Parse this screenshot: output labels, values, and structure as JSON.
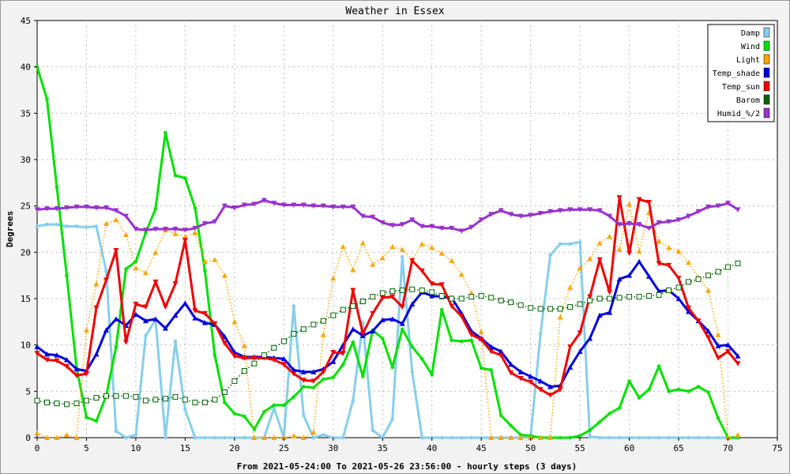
{
  "chart_data": {
    "type": "line",
    "title": "Weather in Essex",
    "xlabel": "From 2021-05-24:00 To 2021-05-26 23:56:00 - hourly steps (3 days)",
    "ylabel": "Degrees",
    "xlim": [
      0,
      75
    ],
    "ylim": [
      0,
      45
    ],
    "xticks": [
      0,
      5,
      10,
      15,
      20,
      25,
      30,
      35,
      40,
      45,
      50,
      55,
      60,
      65,
      70,
      75
    ],
    "yticks": [
      0,
      5,
      10,
      15,
      20,
      25,
      30,
      35,
      40,
      45
    ],
    "grid": true,
    "legend_position": "top-right",
    "series": [
      {
        "name": "Damp",
        "color": "#87ceeb",
        "marker": "circle",
        "line": "solid",
        "values": [
          22.8,
          23,
          23,
          22.8,
          22.8,
          22.7,
          22.8,
          18,
          0.7,
          0,
          0.3,
          11,
          12.7,
          0,
          10.4,
          3,
          0,
          0,
          0,
          0,
          0,
          0,
          0,
          0,
          3.2,
          0,
          14.2,
          2.4,
          0,
          0.3,
          0,
          0,
          4,
          12.4,
          0.8,
          0,
          2,
          19.5,
          7.1,
          0,
          0,
          0,
          0,
          0,
          0,
          0,
          0,
          0,
          0,
          0,
          0.1,
          11.2,
          19.7,
          20.9,
          20.9,
          21.1,
          0.1,
          0,
          0,
          0,
          0,
          0,
          0,
          0,
          0,
          0,
          0,
          0,
          0,
          0,
          0,
          0
        ]
      },
      {
        "name": "Wind",
        "color": "#00e000",
        "marker": "circle",
        "line": "solid",
        "values": [
          40,
          36.5,
          27,
          17.5,
          7.5,
          2.2,
          1.8,
          4.5,
          9.8,
          18.2,
          19,
          22.1,
          24.7,
          32.9,
          28.3,
          28,
          24.8,
          18,
          8.9,
          3.8,
          2.6,
          2.3,
          0.9,
          2.8,
          3.5,
          3.5,
          4.4,
          5.5,
          5.4,
          6.3,
          6.5,
          7.9,
          10.3,
          6.6,
          11.6,
          10.7,
          7.6,
          11.7,
          9.8,
          8.5,
          6.8,
          13.8,
          10.5,
          10.4,
          10.5,
          7.5,
          7.3,
          2.4,
          1.3,
          0.3,
          0.2,
          0,
          0,
          0,
          0,
          0.2,
          0.8,
          1.7,
          2.6,
          3.2,
          6.1,
          4.3,
          5.2,
          7.7,
          5,
          5.2,
          5,
          5.5,
          4.9,
          2.1,
          0,
          0
        ]
      },
      {
        "name": "Light",
        "color": "#ffa500",
        "marker": "triangle-up",
        "line": "dotted",
        "values": [
          0.5,
          0,
          0,
          0.3,
          0,
          11.6,
          16.6,
          23.1,
          23.5,
          21.9,
          18.3,
          17.8,
          20,
          22.4,
          22,
          21.7,
          22.1,
          19,
          19.2,
          17.5,
          12.5,
          9.9,
          0,
          0,
          0,
          0,
          0.2,
          0,
          0.6,
          11.1,
          17.2,
          20.6,
          18.1,
          21,
          18.7,
          19.4,
          20.6,
          20.3,
          19.2,
          20.9,
          20.5,
          19.9,
          19.1,
          17.6,
          15.6,
          11.4,
          0,
          0,
          0,
          0,
          0,
          0,
          0,
          13,
          16.2,
          18.3,
          19.3,
          21,
          21.7,
          20.3,
          25.2,
          20.1,
          24.3,
          21.2,
          20.5,
          20.1,
          18.9,
          17.3,
          15.9,
          11.1,
          0,
          0.3
        ]
      },
      {
        "name": "Temp_shade",
        "color": "#0000dd",
        "marker": "triangle-up",
        "line": "solid",
        "values": [
          9.8,
          9,
          8.9,
          8.4,
          7.4,
          7.2,
          9,
          11.6,
          12.8,
          12.1,
          13.3,
          12.6,
          12.8,
          11.8,
          13.2,
          14.5,
          12.9,
          12.4,
          12.2,
          10.9,
          9.2,
          8.7,
          8.7,
          8.7,
          8.6,
          8.5,
          7.3,
          7.1,
          7.1,
          7.4,
          8.2,
          10,
          11.7,
          11,
          11.5,
          12.7,
          12.8,
          12.3,
          14.4,
          15.7,
          15.3,
          15.2,
          15.1,
          13.4,
          11.5,
          10.7,
          9.8,
          9.3,
          7.9,
          7.1,
          6.6,
          6.1,
          5.5,
          5.6,
          7.6,
          9.3,
          10.7,
          13.2,
          13.5,
          17.1,
          17.5,
          19,
          17.4,
          15.8,
          15.9,
          15,
          13.6,
          12.6,
          11.5,
          9.9,
          10,
          8.8
        ]
      },
      {
        "name": "Temp_sun",
        "color": "#ee0000",
        "marker": "triangle-down",
        "line": "solid",
        "values": [
          9.1,
          8.4,
          8.3,
          7.7,
          6.7,
          6.9,
          14,
          17,
          20.2,
          10.3,
          14.4,
          14.1,
          16.8,
          14.1,
          16.6,
          21.3,
          13.7,
          13.4,
          12.3,
          10.2,
          8.8,
          8.6,
          8.6,
          8.6,
          8.4,
          7.9,
          6.9,
          6.2,
          6.1,
          7.1,
          9.2,
          9.1,
          15.9,
          11.2,
          13.4,
          15.1,
          15.2,
          14.1,
          19.1,
          18,
          16.6,
          16.5,
          14.2,
          13.1,
          11.1,
          10.6,
          9.3,
          8.9,
          7,
          6.4,
          6,
          5.2,
          4.6,
          5.2,
          9.8,
          11.3,
          15.2,
          19.2,
          15.7,
          25.9,
          19.9,
          25.7,
          25.4,
          18.8,
          18.6,
          17.2,
          14,
          12.6,
          10.8,
          8.6,
          9.3,
          8
        ]
      },
      {
        "name": "Barom",
        "color": "#006400",
        "marker": "square",
        "line": "dotted",
        "values": [
          4,
          3.8,
          3.7,
          3.6,
          3.7,
          4,
          4.3,
          4.5,
          4.5,
          4.5,
          4.4,
          4,
          4.1,
          4.2,
          4.4,
          4.1,
          3.8,
          3.8,
          4.1,
          4.9,
          6.1,
          7.2,
          8,
          8.9,
          9.7,
          10.4,
          11.2,
          11.7,
          12.2,
          12.6,
          13.2,
          13.8,
          14.2,
          14.7,
          15.2,
          15.6,
          15.8,
          15.9,
          16,
          15.9,
          15.7,
          15.3,
          15,
          15,
          15.2,
          15.3,
          15.1,
          14.8,
          14.6,
          14.3,
          14,
          13.9,
          13.9,
          13.9,
          14.1,
          14.4,
          14.8,
          15,
          15,
          15.1,
          15.2,
          15.2,
          15.3,
          15.4,
          15.9,
          16.2,
          16.8,
          17.1,
          17.5,
          17.9,
          18.4,
          18.8
        ]
      },
      {
        "name": "Humid_%/2",
        "color": "#9932cc",
        "marker": "triangle-down",
        "line": "solid",
        "values": [
          24.6,
          24.7,
          24.7,
          24.8,
          24.9,
          24.9,
          24.8,
          24.8,
          24.5,
          23.9,
          22.5,
          22.4,
          22.5,
          22.5,
          22.5,
          22.4,
          22.6,
          23.1,
          23.3,
          25,
          24.8,
          25.1,
          25.2,
          25.6,
          25.3,
          25.1,
          25.1,
          25.1,
          25,
          25,
          24.9,
          24.9,
          24.9,
          23.9,
          23.8,
          23.2,
          22.9,
          23,
          23.5,
          22.8,
          22.8,
          22.6,
          22.6,
          22.3,
          22.7,
          23.5,
          24.1,
          24.5,
          24.1,
          23.9,
          24,
          24.2,
          24.4,
          24.5,
          24.6,
          24.6,
          24.6,
          24.5,
          23.9,
          23,
          23.1,
          23,
          22.6,
          23.2,
          23.3,
          23.5,
          23.9,
          24.4,
          24.9,
          25,
          25.3,
          24.6
        ]
      }
    ]
  }
}
